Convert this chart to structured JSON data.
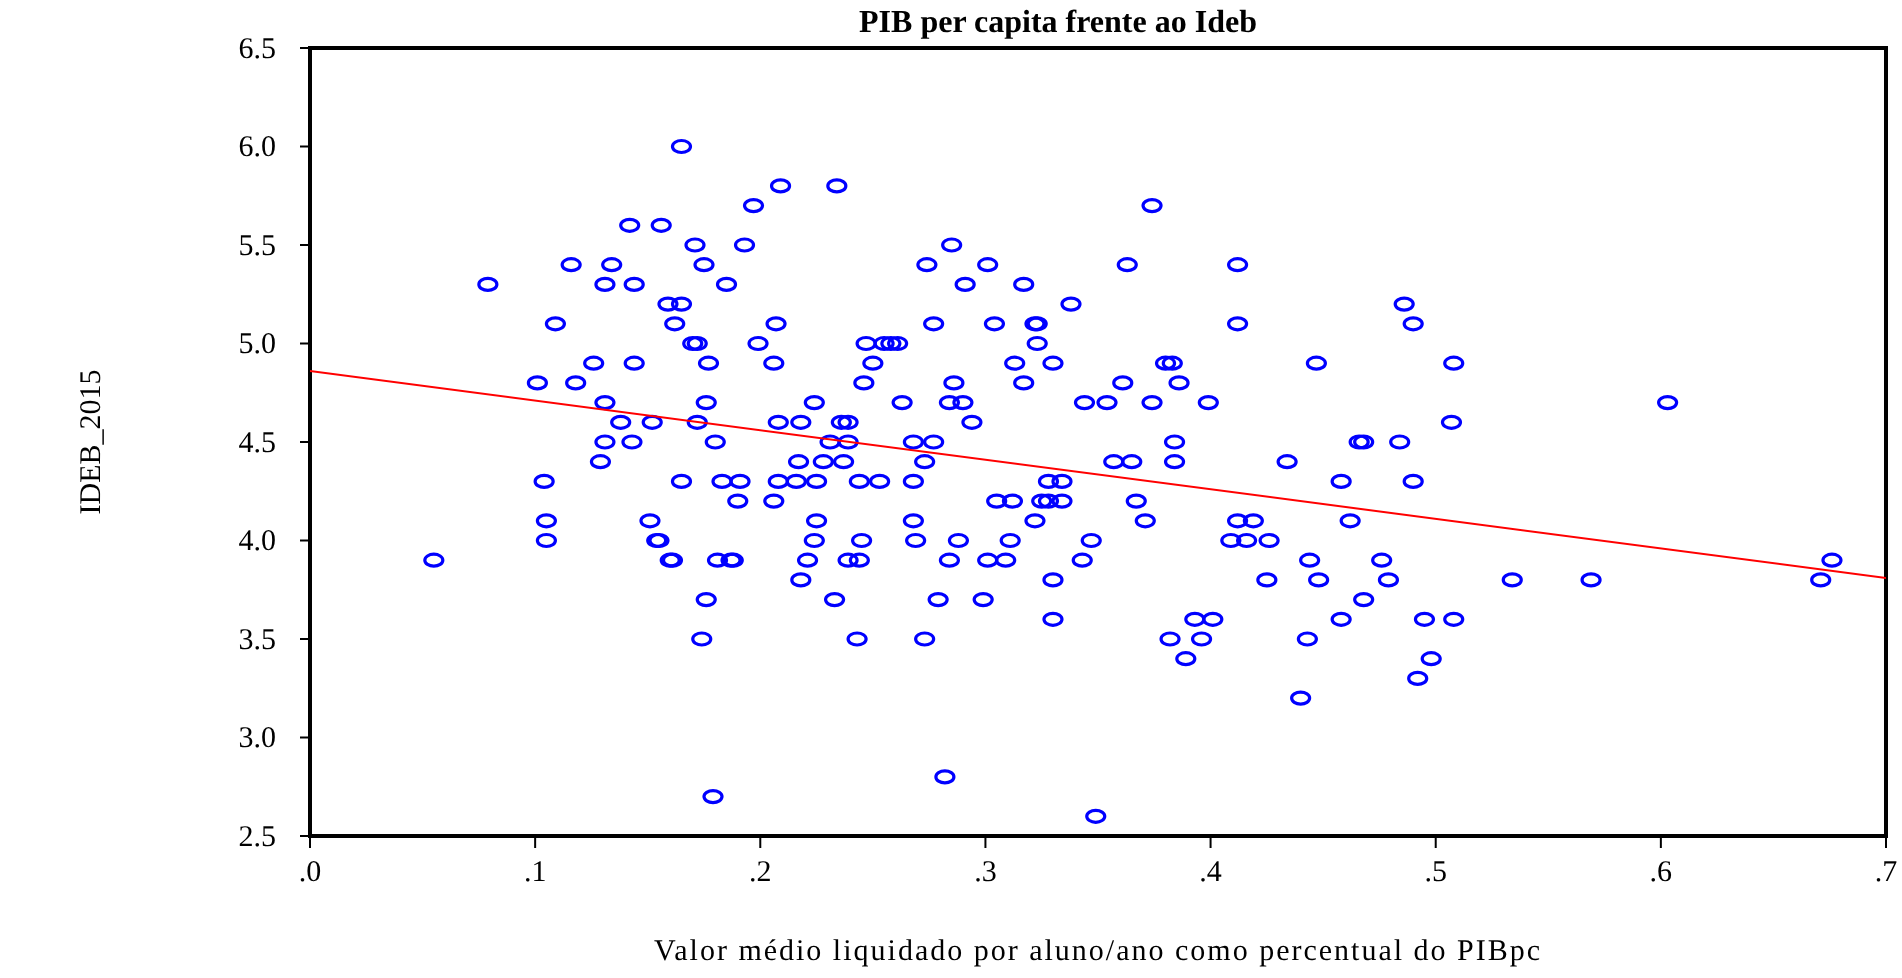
{
  "chart_data": {
    "type": "scatter",
    "title": "PIB per capita frente ao Ideb",
    "xlabel": "Valor médio liquidado por aluno/ano como percentual do PIBpc",
    "ylabel": "IDEB_2015",
    "xlim": [
      0,
      0.7
    ],
    "ylim": [
      2.5,
      6.5
    ],
    "xticks": [
      {
        "value": 0,
        "label": ".0"
      },
      {
        "value": 0.1,
        "label": ".1"
      },
      {
        "value": 0.2,
        "label": ".2"
      },
      {
        "value": 0.3,
        "label": ".3"
      },
      {
        "value": 0.4,
        "label": ".4"
      },
      {
        "value": 0.5,
        "label": ".5"
      },
      {
        "value": 0.6,
        "label": ".6"
      },
      {
        "value": 0.7,
        "label": ".7"
      }
    ],
    "yticks": [
      2.5,
      {
        "value": 3,
        "label": "3.0"
      },
      3.5,
      {
        "value": 4,
        "label": "4.0"
      },
      4.5,
      {
        "value": 5,
        "label": "5.0"
      },
      5.5,
      {
        "value": 6,
        "label": "6.0"
      },
      6.5
    ],
    "series": [
      {
        "marker": "circle",
        "color": "#0000ff",
        "x": [
          0.165,
          0.209,
          0.234,
          0.197,
          0.374,
          0.142,
          0.156,
          0.171,
          0.193,
          0.285,
          0.116,
          0.134,
          0.175,
          0.274,
          0.301,
          0.363,
          0.412,
          0.079,
          0.131,
          0.144,
          0.185,
          0.291,
          0.317,
          0.159,
          0.165,
          0.338,
          0.486,
          0.109,
          0.162,
          0.207,
          0.277,
          0.304,
          0.322,
          0.323,
          0.412,
          0.49,
          0.17,
          0.172,
          0.199,
          0.247,
          0.255,
          0.258,
          0.261,
          0.323,
          0.126,
          0.144,
          0.177,
          0.206,
          0.25,
          0.313,
          0.33,
          0.38,
          0.383,
          0.447,
          0.508,
          0.101,
          0.118,
          0.246,
          0.286,
          0.317,
          0.361,
          0.386,
          0.131,
          0.176,
          0.224,
          0.263,
          0.284,
          0.29,
          0.344,
          0.354,
          0.374,
          0.399,
          0.603,
          0.138,
          0.152,
          0.172,
          0.208,
          0.218,
          0.236,
          0.239,
          0.294,
          0.507,
          0.131,
          0.143,
          0.18,
          0.231,
          0.239,
          0.268,
          0.277,
          0.384,
          0.466,
          0.468,
          0.484,
          0.129,
          0.217,
          0.228,
          0.237,
          0.273,
          0.357,
          0.365,
          0.384,
          0.434,
          0.104,
          0.165,
          0.183,
          0.191,
          0.208,
          0.216,
          0.225,
          0.244,
          0.253,
          0.268,
          0.328,
          0.334,
          0.458,
          0.49,
          0.19,
          0.206,
          0.305,
          0.312,
          0.325,
          0.328,
          0.334,
          0.367,
          0.105,
          0.151,
          0.225,
          0.268,
          0.322,
          0.371,
          0.412,
          0.419,
          0.462,
          0.105,
          0.154,
          0.155,
          0.224,
          0.245,
          0.269,
          0.288,
          0.311,
          0.347,
          0.409,
          0.416,
          0.426,
          0.055,
          0.16,
          0.161,
          0.181,
          0.187,
          0.188,
          0.221,
          0.239,
          0.244,
          0.284,
          0.301,
          0.309,
          0.343,
          0.444,
          0.476,
          0.676,
          0.218,
          0.33,
          0.425,
          0.448,
          0.479,
          0.534,
          0.569,
          0.671,
          0.176,
          0.233,
          0.279,
          0.299,
          0.468,
          0.33,
          0.393,
          0.401,
          0.458,
          0.495,
          0.508,
          0.174,
          0.243,
          0.273,
          0.382,
          0.396,
          0.443,
          0.389,
          0.498,
          0.492,
          0.44,
          0.282,
          0.179,
          0.349
        ],
        "values": [
          6.0,
          5.8,
          5.8,
          5.7,
          5.7,
          5.6,
          5.6,
          5.5,
          5.5,
          5.5,
          5.4,
          5.4,
          5.4,
          5.4,
          5.4,
          5.4,
          5.4,
          5.3,
          5.3,
          5.3,
          5.3,
          5.3,
          5.3,
          5.2,
          5.2,
          5.2,
          5.2,
          5.1,
          5.1,
          5.1,
          5.1,
          5.1,
          5.1,
          5.1,
          5.1,
          5.1,
          5.0,
          5.0,
          5.0,
          5.0,
          5.0,
          5.0,
          5.0,
          5.0,
          4.9,
          4.9,
          4.9,
          4.9,
          4.9,
          4.9,
          4.9,
          4.9,
          4.9,
          4.9,
          4.9,
          4.8,
          4.8,
          4.8,
          4.8,
          4.8,
          4.8,
          4.8,
          4.7,
          4.7,
          4.7,
          4.7,
          4.7,
          4.7,
          4.7,
          4.7,
          4.7,
          4.7,
          4.7,
          4.6,
          4.6,
          4.6,
          4.6,
          4.6,
          4.6,
          4.6,
          4.6,
          4.6,
          4.5,
          4.5,
          4.5,
          4.5,
          4.5,
          4.5,
          4.5,
          4.5,
          4.5,
          4.5,
          4.5,
          4.4,
          4.4,
          4.4,
          4.4,
          4.4,
          4.4,
          4.4,
          4.4,
          4.4,
          4.3,
          4.3,
          4.3,
          4.3,
          4.3,
          4.3,
          4.3,
          4.3,
          4.3,
          4.3,
          4.3,
          4.3,
          4.3,
          4.3,
          4.2,
          4.2,
          4.2,
          4.2,
          4.2,
          4.2,
          4.2,
          4.2,
          4.1,
          4.1,
          4.1,
          4.1,
          4.1,
          4.1,
          4.1,
          4.1,
          4.1,
          4.0,
          4.0,
          4.0,
          4.0,
          4.0,
          4.0,
          4.0,
          4.0,
          4.0,
          4.0,
          4.0,
          4.0,
          3.9,
          3.9,
          3.9,
          3.9,
          3.9,
          3.9,
          3.9,
          3.9,
          3.9,
          3.9,
          3.9,
          3.9,
          3.9,
          3.9,
          3.9,
          3.9,
          3.8,
          3.8,
          3.8,
          3.8,
          3.8,
          3.8,
          3.8,
          3.8,
          3.7,
          3.7,
          3.7,
          3.7,
          3.7,
          3.6,
          3.6,
          3.6,
          3.6,
          3.6,
          3.6,
          3.5,
          3.5,
          3.5,
          3.5,
          3.5,
          3.5,
          3.4,
          3.4,
          3.3,
          3.2,
          2.8,
          2.7,
          2.6
        ]
      },
      {
        "type": "line",
        "marker": "none",
        "color": "#ff0000",
        "x": [
          0,
          0.7
        ],
        "values": [
          4.86,
          3.81
        ]
      }
    ]
  }
}
